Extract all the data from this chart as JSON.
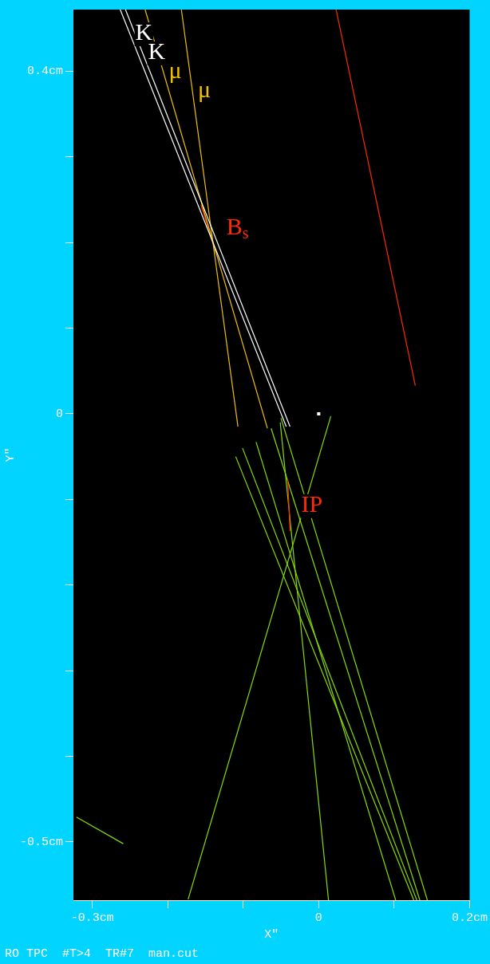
{
  "chart_data": {
    "type": "line",
    "xlabel": "X\"",
    "ylabel": "Y\"",
    "xlim": [
      -0.325,
      0.2
    ],
    "ylim": [
      -0.568,
      0.472
    ],
    "xticks": [
      {
        "value": -0.3,
        "label": "-0.3cm"
      },
      {
        "value": -0.2,
        "label": null
      },
      {
        "value": -0.1,
        "label": null
      },
      0,
      {
        "value": 0.1,
        "label": null
      },
      {
        "value": 0.2,
        "label": "0.2cm"
      }
    ],
    "yticks": [
      {
        "value": 0.4,
        "label": "0.4cm"
      },
      {
        "value": 0.3,
        "label": null
      },
      {
        "value": 0.2,
        "label": null
      },
      {
        "value": 0.1,
        "label": null
      },
      0,
      {
        "value": -0.1,
        "label": null
      },
      {
        "value": -0.2,
        "label": null
      },
      {
        "value": -0.3,
        "label": null
      },
      {
        "value": -0.4,
        "label": null
      },
      {
        "value": -0.5,
        "label": "-0.5cm"
      }
    ],
    "series": [
      {
        "name": "K",
        "color": "#ffffff",
        "x": [
          -0.263,
          -0.043
        ],
        "values": [
          0.472,
          -0.015
        ]
      },
      {
        "name": "K",
        "color": "#ffffff",
        "x": [
          -0.256,
          -0.038
        ],
        "values": [
          0.472,
          -0.015
        ]
      },
      {
        "name": "μ",
        "color": "#f0c000",
        "x": [
          -0.23,
          -0.068
        ],
        "values": [
          0.472,
          -0.017
        ]
      },
      {
        "name": "μ",
        "color": "#f0c000",
        "x": [
          -0.182,
          -0.107
        ],
        "values": [
          0.472,
          -0.015
        ]
      },
      {
        "color": "#ff2a00",
        "x": [
          0.023,
          0.128
        ],
        "values": [
          0.472,
          0.033
        ]
      },
      {
        "name": "B$_{s}$",
        "color": "#ff2a00",
        "x": [
          -0.156,
          -0.137
        ],
        "values": [
          0.244,
          0.19
        ]
      },
      {
        "name": "IP",
        "color": "#ff2a00",
        "x": [
          -0.041,
          -0.038
        ],
        "values": [
          -0.077,
          -0.137
        ]
      },
      {
        "color": "#88dd00",
        "x": [
          0.016,
          -0.173
        ],
        "values": [
          -0.003,
          -0.567
        ]
      },
      {
        "color": "#88dd00",
        "x": [
          -0.051,
          0.013
        ],
        "values": [
          -0.01,
          -0.568
        ]
      },
      {
        "color": "#88dd00",
        "x": [
          -0.11,
          0.126
        ],
        "values": [
          -0.05,
          -0.568
        ]
      },
      {
        "color": "#88dd00",
        "x": [
          -0.101,
          0.13
        ],
        "values": [
          -0.04,
          -0.568
        ]
      },
      {
        "color": "#88dd00",
        "x": [
          -0.083,
          0.102
        ],
        "values": [
          -0.033,
          -0.568
        ]
      },
      {
        "color": "#88dd00",
        "x": [
          -0.063,
          0.134
        ],
        "values": [
          -0.017,
          -0.568
        ]
      },
      {
        "color": "#88dd00",
        "x": [
          -0.05,
          0.144
        ],
        "values": [
          -0.005,
          -0.568
        ]
      },
      {
        "color": "#88dd00",
        "x": [
          -0.321,
          -0.259
        ],
        "values": [
          -0.471,
          -0.502
        ]
      },
      {
        "type": "scatter",
        "color": "#ffffff",
        "x": [
          0
        ],
        "values": [
          0
        ]
      }
    ],
    "annotations": [
      "RO TPC",
      "#T>4",
      "TR#7",
      "man.cut"
    ]
  }
}
